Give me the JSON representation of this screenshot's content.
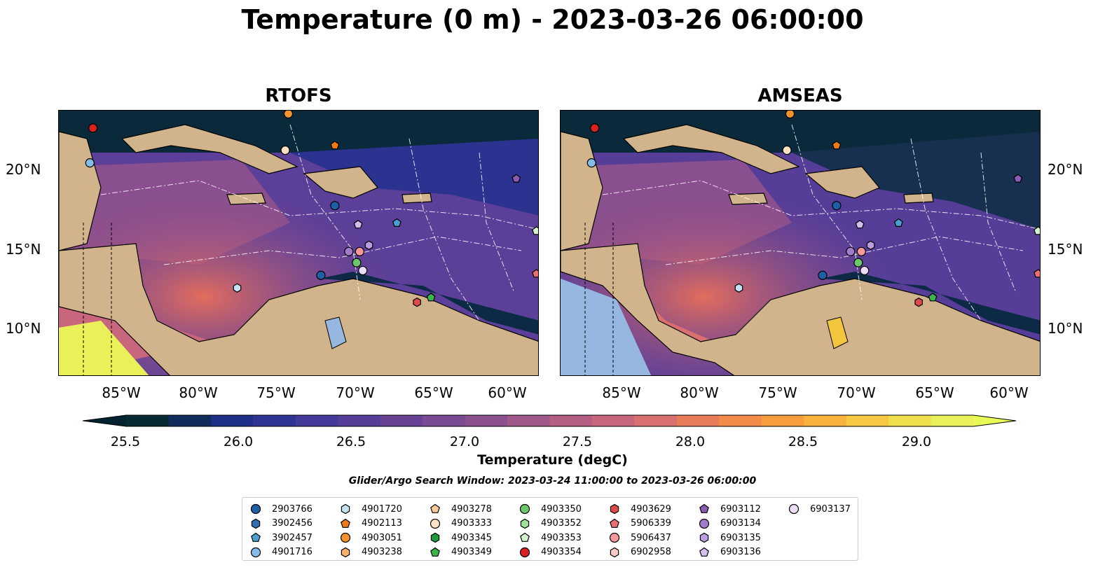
{
  "title": "Temperature (0 m) - 2023-03-26 06:00:00",
  "panels": [
    {
      "title": "RTOFS"
    },
    {
      "title": "AMSEAS"
    }
  ],
  "lon_ticks": [
    "85°W",
    "80°W",
    "75°W",
    "70°W",
    "65°W",
    "60°W"
  ],
  "lat_ticks": [
    "20°N",
    "15°N",
    "10°N"
  ],
  "colorbar": {
    "label": "Temperature (degC)",
    "ticks": [
      "25.5",
      "26.0",
      "26.5",
      "27.0",
      "27.5",
      "28.0",
      "28.5",
      "29.0"
    ],
    "colors": [
      "#062a34",
      "#0f2c5a",
      "#1d2f86",
      "#2f3394",
      "#433998",
      "#553d98",
      "#684395",
      "#7a4a93",
      "#8d508f",
      "#a0578a",
      "#b45e84",
      "#c7667c",
      "#d96f6e",
      "#e87c5a",
      "#f38b48",
      "#f89d3c",
      "#f9b23c",
      "#f6c843",
      "#efdf4c",
      "#e8f05a"
    ],
    "extend_min": "#052230",
    "extend_max": "#e8fa58"
  },
  "search_window": "Glider/Argo Search Window: 2023-03-24 11:00:00 to 2023-03-26 06:00:00",
  "legend": [
    {
      "id": "2903766",
      "marker": "circle",
      "color": "#1f5fa6"
    },
    {
      "id": "3902456",
      "marker": "hexagon",
      "color": "#2e6fb0"
    },
    {
      "id": "3902457",
      "marker": "pentagon",
      "color": "#4a9fd0"
    },
    {
      "id": "4901716",
      "marker": "circle",
      "color": "#86bde8"
    },
    {
      "id": "4901720",
      "marker": "hexagon",
      "color": "#c3e2f6"
    },
    {
      "id": "4902113",
      "marker": "pentagon",
      "color": "#f07a18"
    },
    {
      "id": "4903051",
      "marker": "circle",
      "color": "#f5922e"
    },
    {
      "id": "4903238",
      "marker": "hexagon",
      "color": "#f8b26a"
    },
    {
      "id": "4903278",
      "marker": "pentagon",
      "color": "#fac996"
    },
    {
      "id": "4903333",
      "marker": "circle",
      "color": "#fde1c4"
    },
    {
      "id": "4903345",
      "marker": "hexagon",
      "color": "#1f9a3a"
    },
    {
      "id": "4903349",
      "marker": "pentagon",
      "color": "#3ab54a"
    },
    {
      "id": "4903350",
      "marker": "circle",
      "color": "#6cc96a"
    },
    {
      "id": "4903352",
      "marker": "hexagon",
      "color": "#9fe09a"
    },
    {
      "id": "4903353",
      "marker": "pentagon",
      "color": "#d2f3cd"
    },
    {
      "id": "4903354",
      "marker": "circle",
      "color": "#d62320"
    },
    {
      "id": "4903629",
      "marker": "hexagon",
      "color": "#dd4a4a"
    },
    {
      "id": "5906339",
      "marker": "pentagon",
      "color": "#ee6f72"
    },
    {
      "id": "5906437",
      "marker": "circle",
      "color": "#f7999b"
    },
    {
      "id": "6902958",
      "marker": "hexagon",
      "color": "#fbc8c6"
    },
    {
      "id": "6903112",
      "marker": "pentagon",
      "color": "#8a5bb0"
    },
    {
      "id": "6903134",
      "marker": "circle",
      "color": "#a27ccc"
    },
    {
      "id": "6903135",
      "marker": "hexagon",
      "color": "#bc9ee0"
    },
    {
      "id": "6903136",
      "marker": "pentagon",
      "color": "#d4bdef"
    },
    {
      "id": "6903137",
      "marker": "circle",
      "color": "#ebdcf9"
    }
  ],
  "markers": [
    {
      "id": "4903051",
      "lon": -74.2,
      "lat": 23.6
    },
    {
      "id": "4903354",
      "lon": -86.8,
      "lat": 22.7
    },
    {
      "id": "4903333",
      "lon": -74.4,
      "lat": 21.3
    },
    {
      "id": "4902113",
      "lon": -71.2,
      "lat": 21.6
    },
    {
      "id": "4901716",
      "lon": -87.0,
      "lat": 20.5
    },
    {
      "id": "6903112",
      "lon": -59.5,
      "lat": 19.5
    },
    {
      "id": "2903766",
      "lon": -71.2,
      "lat": 17.8
    },
    {
      "id": "3902457",
      "lon": -67.2,
      "lat": 16.7
    },
    {
      "id": "6903136",
      "lon": -69.7,
      "lat": 16.6
    },
    {
      "id": "4903353",
      "lon": -58.2,
      "lat": 16.2
    },
    {
      "id": "6903135",
      "lon": -69.0,
      "lat": 15.3
    },
    {
      "id": "5906437",
      "lon": -69.6,
      "lat": 14.9
    },
    {
      "id": "6903134",
      "lon": -70.3,
      "lat": 14.9
    },
    {
      "id": "4903350",
      "lon": -69.8,
      "lat": 14.2
    },
    {
      "id": "6903137",
      "lon": -69.4,
      "lat": 13.7
    },
    {
      "id": "2903766",
      "lon": -72.1,
      "lat": 13.4
    },
    {
      "id": "5906339",
      "lon": -58.2,
      "lat": 13.5
    },
    {
      "id": "4901720",
      "lon": -77.5,
      "lat": 12.6
    },
    {
      "id": "4903349",
      "lon": -65.0,
      "lat": 12.0
    },
    {
      "id": "4903629",
      "lon": -65.9,
      "lat": 11.7
    }
  ]
}
